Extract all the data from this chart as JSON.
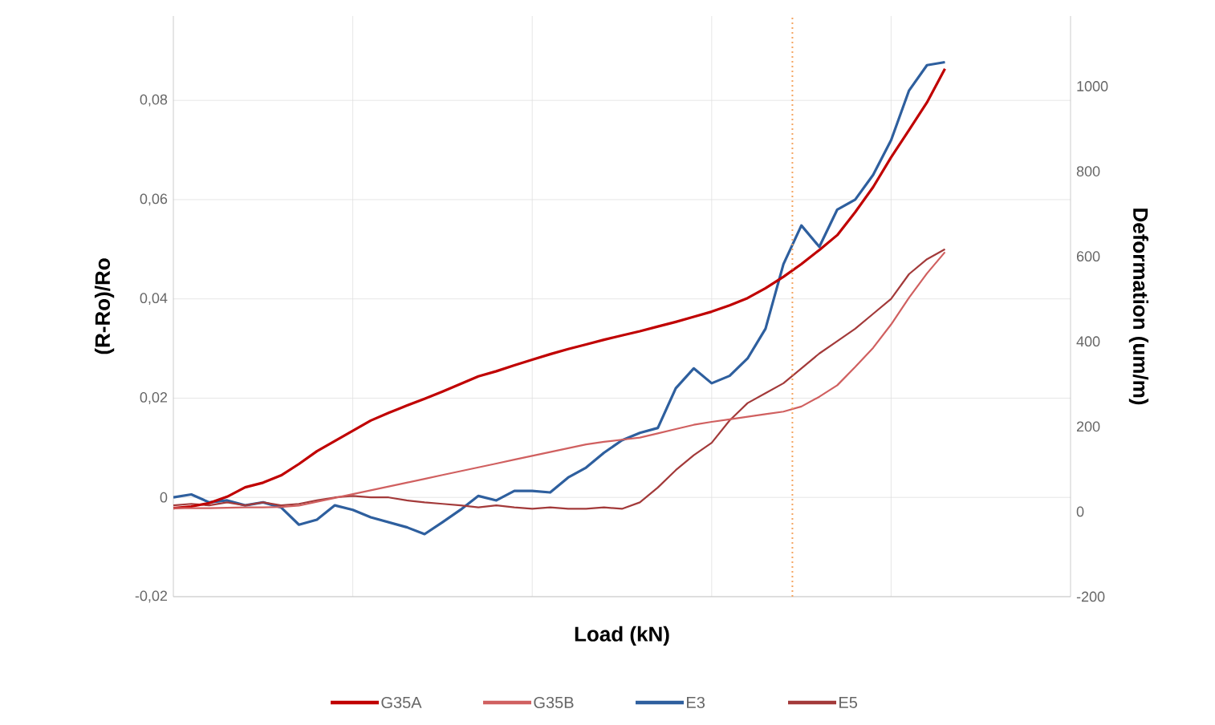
{
  "chart_data": {
    "type": "line",
    "xlabel": "Load (kN)",
    "ylabel": "(R-Ro)/Ro",
    "y2label": "Deformation (um/m)",
    "categories": [
      null,
      null,
      null,
      null,
      null,
      null,
      null,
      null,
      null,
      null,
      null,
      null,
      null,
      null,
      null,
      null,
      null,
      null,
      null,
      null,
      null,
      null,
      null,
      null,
      null,
      null,
      null,
      null,
      null,
      null,
      null,
      null,
      null,
      null,
      null,
      null,
      null,
      null,
      null,
      null,
      null,
      null,
      null,
      null,
      null,
      null,
      null,
      null,
      null,
      null,
      null
    ],
    "ylim": [
      -0.02,
      0.097
    ],
    "yticks": [
      {
        "value": -0.02,
        "label": "-0,02"
      },
      0,
      {
        "value": 0.02,
        "label": "0,02"
      },
      {
        "value": 0.04,
        "label": "0,04"
      },
      {
        "value": 0.06,
        "label": "0,06"
      },
      {
        "value": 0.08,
        "label": "0,08"
      }
    ],
    "y2lim": [
      -200,
      1165
    ],
    "y2ticks": [
      -200,
      0,
      200,
      400,
      600,
      800,
      1000
    ],
    "tick_labels": "y",
    "grid": true,
    "legend": "bottom",
    "marker": "none",
    "series": [
      {
        "name": "G35A",
        "color": "#c00000",
        "axis": "y2",
        "values": [
          8,
          12,
          20,
          35,
          57,
          68,
          85,
          112,
          142,
          166,
          190,
          214,
          232,
          249,
          265,
          282,
          300,
          318,
          330,
          344,
          357,
          370,
          382,
          393,
          404,
          414,
          424,
          435,
          446,
          458,
          470,
          485,
          502,
          525,
          552,
          582,
          615,
          650,
          704,
          763,
          833,
          897,
          962,
          1041,
          null,
          null,
          null,
          null,
          null,
          null,
          null
        ]
      },
      {
        "name": "G35B",
        "color": "#d06060",
        "axis": "y2",
        "values": [
          8,
          8,
          8,
          9,
          10,
          10,
          11,
          14,
          23,
          32,
          41,
          50,
          59,
          68,
          77,
          86,
          95,
          104,
          113,
          122,
          131,
          140,
          149,
          158,
          164,
          169,
          174,
          184,
          194,
          204,
          211,
          217,
          223,
          229,
          235,
          247,
          270,
          297,
          340,
          385,
          440,
          503,
          560,
          610,
          null,
          null,
          null,
          null,
          null,
          null,
          null
        ]
      },
      {
        "name": "E3",
        "color": "#2e5f9e",
        "values": [
          0,
          0.0006,
          -0.001,
          -0.0006,
          -0.0016,
          -0.001,
          -0.002,
          -0.0055,
          -0.0045,
          -0.0016,
          -0.0025,
          -0.004,
          -0.005,
          -0.006,
          -0.0074,
          -0.005,
          -0.0025,
          0.0003,
          -0.0006,
          0.0013,
          0.0013,
          0.001,
          0.004,
          0.006,
          0.009,
          0.0115,
          0.013,
          0.014,
          0.022,
          0.026,
          0.023,
          0.0245,
          0.028,
          0.034,
          0.047,
          0.0548,
          0.0505,
          0.058,
          0.06,
          0.065,
          0.072,
          0.082,
          0.0871,
          0.0877,
          null,
          null,
          null,
          null,
          null,
          null,
          null
        ]
      },
      {
        "name": "E5",
        "color": "#a33a3a",
        "values": [
          -0.0016,
          -0.0013,
          -0.0016,
          -0.001,
          -0.0016,
          -0.001,
          -0.0016,
          -0.0013,
          -0.0006,
          0,
          0.0003,
          0,
          0,
          -0.0006,
          -0.001,
          -0.0013,
          -0.0016,
          -0.002,
          -0.0016,
          -0.002,
          -0.0023,
          -0.002,
          -0.0023,
          -0.0023,
          -0.002,
          -0.0023,
          -0.001,
          0.002,
          0.0055,
          0.0085,
          0.011,
          0.0155,
          0.019,
          0.021,
          0.023,
          0.026,
          0.029,
          0.0315,
          0.034,
          0.037,
          0.04,
          0.045,
          0.048,
          0.05,
          null,
          null,
          null,
          null,
          null,
          null,
          null
        ]
      }
    ]
  }
}
